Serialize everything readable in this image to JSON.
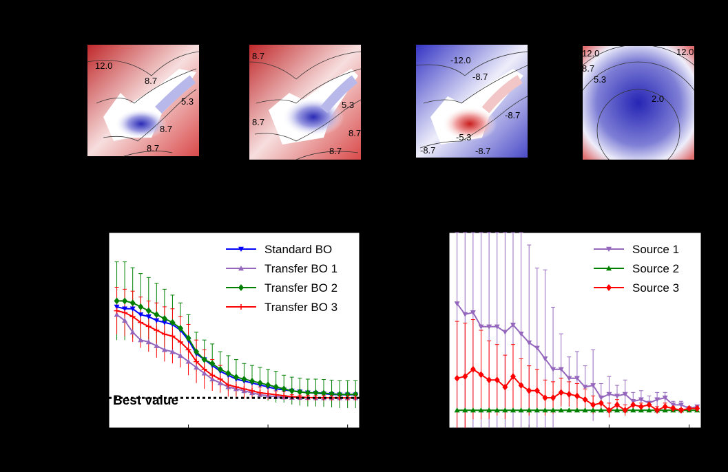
{
  "colors": {
    "background": "#000000",
    "standard_bo": "#0000ff",
    "transfer_bo_1": "#9467bd",
    "transfer_bo_2": "#008000",
    "transfer_bo_3": "#ff0000",
    "source_1": "#9467bd",
    "source_2": "#008000",
    "source_3": "#ff0000",
    "diverging_low": "#3b4cc0",
    "diverging_high": "#b40426"
  },
  "chart_data": [
    {
      "type": "heatmap",
      "panel": "contour-1",
      "colormap": "bwr diverging",
      "contour_labels": [
        "12.0",
        "8.7",
        "5.3",
        "8.7",
        "8.7"
      ]
    },
    {
      "type": "heatmap",
      "panel": "contour-2",
      "colormap": "bwr diverging",
      "contour_labels": [
        "8.7",
        "8.7",
        "5.3",
        "8.7",
        "8.7"
      ]
    },
    {
      "type": "heatmap",
      "panel": "contour-3",
      "colormap": "bwr diverging",
      "contour_labels": [
        "-12.0",
        "-8.7",
        "-8.7",
        "-5.3",
        "-8.7",
        "-8.7"
      ]
    },
    {
      "type": "heatmap",
      "panel": "contour-4",
      "colormap": "bwr diverging",
      "contour_labels": [
        "12.0",
        "12.0",
        "8.7",
        "5.3",
        "2.0"
      ]
    },
    {
      "type": "line",
      "panel": "left-line-chart",
      "x": [
        1,
        2,
        3,
        4,
        5,
        6,
        7,
        8,
        9,
        10,
        11,
        12,
        13,
        14,
        15,
        16,
        17,
        18,
        19,
        20,
        21,
        22,
        23,
        24,
        25,
        26,
        27,
        28,
        29,
        30,
        31
      ],
      "ylim": [
        0,
        1
      ],
      "xlim": [
        0,
        31.5
      ],
      "grid": false,
      "legend_position": "top-right",
      "annotation": "Best value",
      "best_value": 0.154,
      "series": [
        {
          "name": "Standard BO",
          "marker": "triangle-down",
          "color_key": "standard_bo",
          "values": [
            0.62,
            0.61,
            0.61,
            0.58,
            0.57,
            0.55,
            0.54,
            0.53,
            0.5,
            0.45,
            0.38,
            0.35,
            0.32,
            0.29,
            0.27,
            0.25,
            0.24,
            0.23,
            0.22,
            0.21,
            0.2,
            0.195,
            0.19,
            0.185,
            0.18,
            0.178,
            0.175,
            0.172,
            0.17,
            0.17,
            0.17
          ]
        },
        {
          "name": "Transfer BO 1",
          "marker": "triangle-up",
          "color_key": "transfer_bo_1",
          "values": [
            0.58,
            0.55,
            0.49,
            0.45,
            0.44,
            0.42,
            0.4,
            0.39,
            0.37,
            0.34,
            0.31,
            0.28,
            0.25,
            0.23,
            0.21,
            0.2,
            0.19,
            0.18,
            0.17,
            0.165,
            0.16,
            0.158,
            0.156,
            0.155,
            0.155,
            0.154,
            0.154,
            0.154,
            0.154,
            0.154,
            0.154
          ]
        },
        {
          "name": "Transfer BO 2",
          "marker": "diamond",
          "color_key": "transfer_bo_2",
          "values": [
            0.65,
            0.65,
            0.64,
            0.62,
            0.6,
            0.58,
            0.56,
            0.54,
            0.51,
            0.46,
            0.39,
            0.35,
            0.33,
            0.3,
            0.28,
            0.26,
            0.25,
            0.24,
            0.23,
            0.22,
            0.21,
            0.2,
            0.19,
            0.185,
            0.18,
            0.18,
            0.178,
            0.175,
            0.172,
            0.172,
            0.172
          ]
        },
        {
          "name": "Transfer BO 3",
          "marker": "plus",
          "color_key": "transfer_bo_3",
          "values": [
            0.6,
            0.59,
            0.57,
            0.54,
            0.52,
            0.5,
            0.48,
            0.47,
            0.44,
            0.4,
            0.34,
            0.3,
            0.27,
            0.25,
            0.22,
            0.21,
            0.2,
            0.19,
            0.18,
            0.175,
            0.17,
            0.165,
            0.16,
            0.158,
            0.156,
            0.155,
            0.155,
            0.154,
            0.154,
            0.154,
            0.154
          ]
        }
      ],
      "error_bars": {
        "transfer_bo_2": [
          0.2,
          0.2,
          0.18,
          0.17,
          0.17,
          0.16,
          0.15,
          0.14,
          0.13,
          0.12,
          0.1,
          0.1,
          0.1,
          0.09,
          0.09,
          0.09,
          0.08,
          0.08,
          0.08,
          0.08,
          0.08,
          0.07,
          0.07,
          0.07,
          0.07,
          0.07,
          0.07,
          0.07,
          0.07,
          0.07,
          0.07
        ],
        "transfer_bo_3": [
          0.12,
          0.12,
          0.13,
          0.13,
          0.13,
          0.14,
          0.14,
          0.14,
          0.13,
          0.13,
          0.11,
          0.1,
          0.08,
          0.07,
          0.06,
          0.05,
          0.05,
          0.04,
          0.03,
          0.03,
          0.02,
          0.02,
          0.01,
          0.01,
          0.01,
          0.01,
          0.01,
          0.01,
          0.01,
          0.01,
          0.01
        ]
      }
    },
    {
      "type": "line",
      "panel": "right-line-chart",
      "x": [
        1,
        2,
        3,
        4,
        5,
        6,
        7,
        8,
        9,
        10,
        11,
        12,
        13,
        14,
        15,
        16,
        17,
        18,
        19,
        20,
        21,
        22,
        23,
        24,
        25,
        26,
        27,
        28,
        29,
        30,
        31
      ],
      "ylim": [
        -0.1,
        1.0
      ],
      "xlim": [
        0,
        31.5
      ],
      "grid": false,
      "legend_position": "top-right",
      "series": [
        {
          "name": "Source 1",
          "marker": "triangle-down",
          "color_key": "source_1",
          "values": [
            0.6,
            0.54,
            0.55,
            0.47,
            0.47,
            0.47,
            0.44,
            0.48,
            0.43,
            0.38,
            0.35,
            0.29,
            0.23,
            0.23,
            0.18,
            0.18,
            0.13,
            0.14,
            0.07,
            0.09,
            0.08,
            0.09,
            0.05,
            0.06,
            0.04,
            0.06,
            0.07,
            0.03,
            0.03,
            0.01,
            0.02
          ]
        },
        {
          "name": "Source 2",
          "marker": "triangle-up",
          "color_key": "source_2",
          "values": [
            0.0,
            0.0,
            0.0,
            0.0,
            0.0,
            0.0,
            0.0,
            0.0,
            0.0,
            0.0,
            0.0,
            0.0,
            0.0,
            0.0,
            0.0,
            0.0,
            0.0,
            0.0,
            0.0,
            0.0,
            0.0,
            0.0,
            0.0,
            0.0,
            0.0,
            0.0,
            0.0,
            0.0,
            0.0,
            0.0,
            0.0
          ]
        },
        {
          "name": "Source 3",
          "marker": "diamond",
          "color_key": "source_3",
          "values": [
            0.18,
            0.19,
            0.23,
            0.2,
            0.17,
            0.17,
            0.13,
            0.19,
            0.14,
            0.11,
            0.11,
            0.07,
            0.07,
            0.1,
            0.09,
            0.08,
            0.06,
            0.03,
            0.04,
            0.0,
            0.03,
            0.0,
            0.03,
            0.02,
            0.03,
            0.0,
            0.02,
            0.01,
            0.0,
            0.01,
            0.01
          ]
        }
      ],
      "error_bars": {
        "source_1": [
          1.0,
          0.9,
          0.85,
          0.95,
          0.9,
          0.85,
          0.7,
          0.88,
          0.75,
          0.55,
          0.45,
          0.5,
          0.35,
          0.2,
          0.12,
          0.15,
          0.12,
          0.2,
          0.08,
          0.1,
          0.06,
          0.08,
          0.05,
          0.05,
          0.04,
          0.04,
          0.03,
          0.02,
          0.02,
          0.01,
          0.01
        ],
        "source_3": [
          0.32,
          0.3,
          0.28,
          0.25,
          0.22,
          0.2,
          0.18,
          0.18,
          0.15,
          0.14,
          0.12,
          0.1,
          0.09,
          0.08,
          0.07,
          0.07,
          0.06,
          0.05,
          0.04,
          0.04,
          0.03,
          0.03,
          0.03,
          0.02,
          0.02,
          0.02,
          0.02,
          0.01,
          0.01,
          0.01,
          0.01
        ]
      }
    }
  ]
}
